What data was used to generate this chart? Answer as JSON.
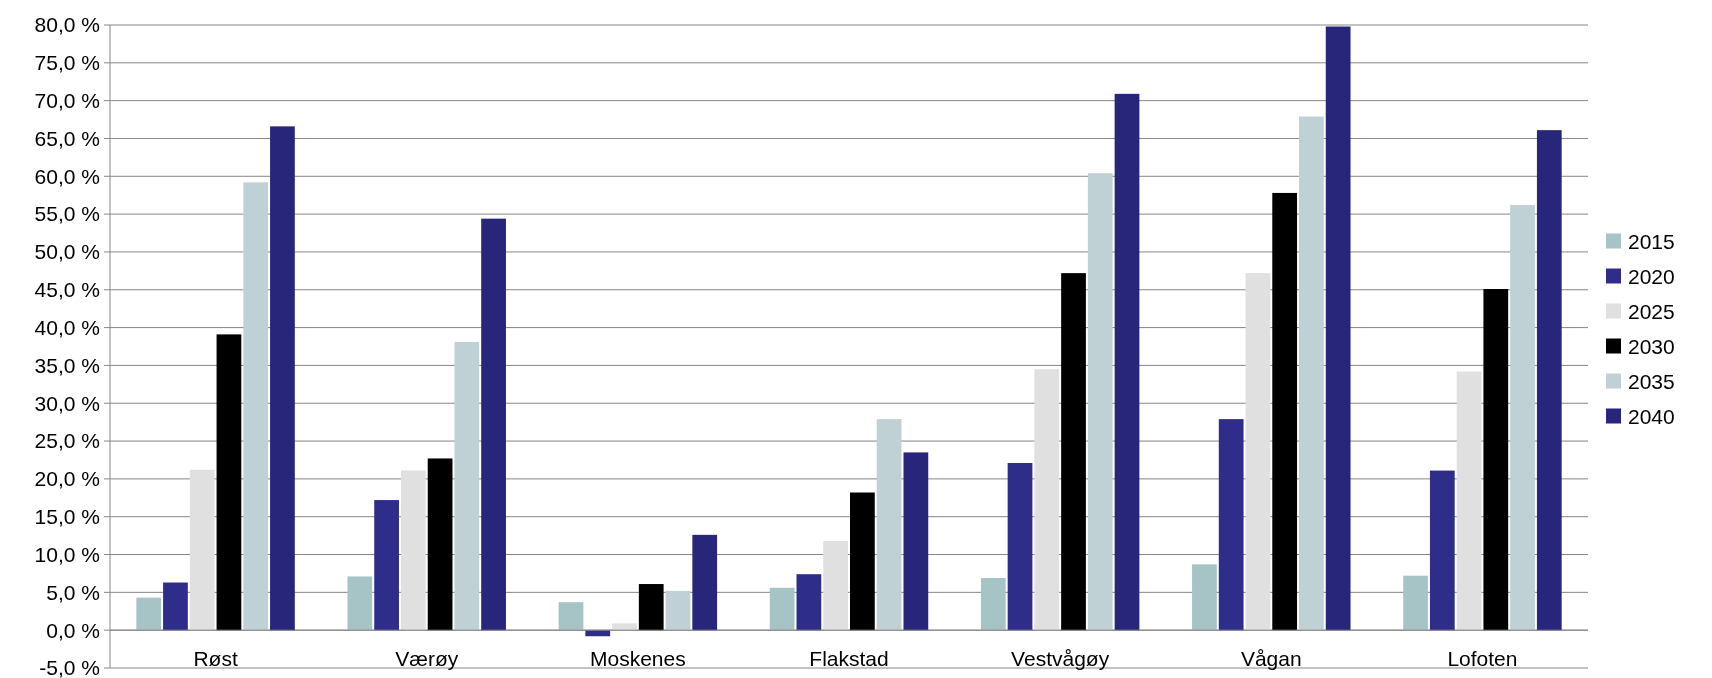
{
  "chart_data": {
    "type": "bar",
    "categories": [
      "Røst",
      "Værøy",
      "Moskenes",
      "Flakstad",
      "Vestvågøy",
      "Vågan",
      "Lofoten"
    ],
    "series": [
      {
        "name": "2015",
        "color": "#a6c4c6",
        "values": [
          4.3,
          7.1,
          3.7,
          5.6,
          6.9,
          8.7,
          7.2
        ]
      },
      {
        "name": "2020",
        "color": "#2e2e8a",
        "values": [
          6.3,
          17.2,
          -0.8,
          7.4,
          22.1,
          27.9,
          21.1
        ]
      },
      {
        "name": "2025",
        "color": "#e0e0e0",
        "values": [
          21.2,
          21.1,
          0.9,
          11.8,
          34.5,
          47.2,
          34.2
        ]
      },
      {
        "name": "2030",
        "color": "#000000",
        "values": [
          39.1,
          22.7,
          6.1,
          18.2,
          47.2,
          57.8,
          45.1
        ]
      },
      {
        "name": "2035",
        "color": "#bfd1d4",
        "values": [
          59.2,
          38.1,
          5.2,
          27.9,
          60.4,
          67.9,
          56.2
        ]
      },
      {
        "name": "2040",
        "color": "#28267a",
        "values": [
          66.6,
          54.4,
          12.6,
          23.5,
          70.9,
          79.8,
          66.1
        ]
      }
    ],
    "ylim": [
      -5,
      80
    ],
    "yticks": [
      {
        "value": -5,
        "label": "-5,0 %"
      },
      {
        "value": 0,
        "label": "0,0 %"
      },
      {
        "value": 5,
        "label": "5,0 %"
      },
      {
        "value": 10,
        "label": "10,0 %"
      },
      {
        "value": 15,
        "label": "15,0 %"
      },
      {
        "value": 20,
        "label": "20,0 %"
      },
      {
        "value": 25,
        "label": "25,0 %"
      },
      {
        "value": 30,
        "label": "30,0 %"
      },
      {
        "value": 35,
        "label": "35,0 %"
      },
      {
        "value": 40,
        "label": "40,0 %"
      },
      {
        "value": 45,
        "label": "45,0 %"
      },
      {
        "value": 50,
        "label": "50,0 %"
      },
      {
        "value": 55,
        "label": "55,0 %"
      },
      {
        "value": 60,
        "label": "60,0 %"
      },
      {
        "value": 65,
        "label": "65,0 %"
      },
      {
        "value": 70,
        "label": "70,0 %"
      },
      {
        "value": 75,
        "label": "75,0 %"
      },
      {
        "value": 80,
        "label": "80,0 %"
      }
    ],
    "grid": "y",
    "legend": "right"
  }
}
